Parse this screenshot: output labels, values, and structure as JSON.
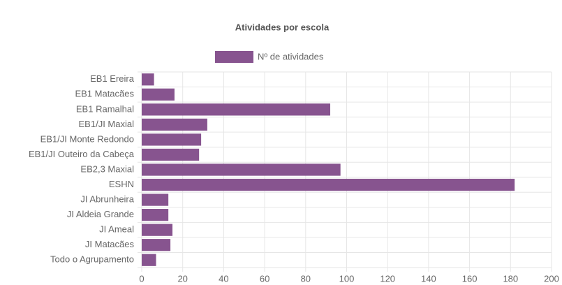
{
  "chart_data": {
    "type": "bar",
    "orientation": "horizontal",
    "title": "Atividades por escola",
    "categories": [
      "EB1 Ereira",
      "EB1 Matacães",
      "EB1 Ramalhal",
      "EB1/JI Maxial",
      "EB1/JI Monte Redondo",
      "EB1/JI Outeiro da Cabeça",
      "EB2,3 Maxial",
      "ESHN",
      "JI Abrunheira",
      "JI Aldeia Grande",
      "JI Ameal",
      "JI Matacães",
      "Todo o Agrupamento"
    ],
    "series": [
      {
        "name": "Nº de atividades",
        "color": "#87548f",
        "values": [
          6,
          16,
          92,
          32,
          29,
          28,
          97,
          182,
          13,
          13,
          15,
          14,
          7
        ]
      }
    ],
    "xlim": [
      0,
      200
    ],
    "xticks": [
      0,
      20,
      40,
      60,
      80,
      100,
      120,
      140,
      160,
      180,
      200
    ],
    "grid": true,
    "legend": "top"
  }
}
